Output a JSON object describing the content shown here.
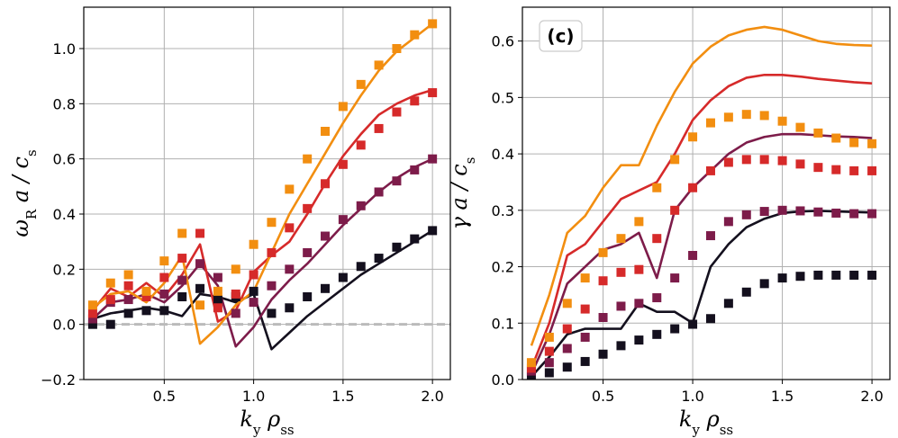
{
  "chart_data": [
    {
      "type": "line",
      "title": "",
      "xlabel": "k_y ρ_ss",
      "ylabel": "ω_R a / c_s",
      "xticks": [
        0.5,
        1.0,
        1.5,
        2.0
      ],
      "yticks": [
        -0.2,
        0.0,
        0.2,
        0.4,
        0.6,
        0.8,
        1.0
      ],
      "xlim": [
        0.05,
        2.1
      ],
      "ylim": [
        -0.2,
        1.15
      ],
      "grid": true,
      "reference_line": {
        "y": 0.0,
        "style": "dashed",
        "color": "#bbbbbb"
      },
      "x": [
        0.1,
        0.2,
        0.3,
        0.4,
        0.5,
        0.6,
        0.7,
        0.8,
        0.9,
        1.0,
        1.1,
        1.2,
        1.3,
        1.4,
        1.5,
        1.6,
        1.7,
        1.8,
        1.9,
        2.0
      ],
      "series": [
        {
          "color": "#f28e10",
          "line": [
            0.06,
            0.11,
            0.12,
            0.08,
            0.15,
            0.25,
            -0.07,
            -0.01,
            0.07,
            0.12,
            0.26,
            0.4,
            0.51,
            0.62,
            0.73,
            0.83,
            0.92,
            0.99,
            1.04,
            1.09
          ],
          "markers": [
            0.07,
            0.15,
            0.18,
            0.12,
            0.23,
            0.33,
            0.07,
            0.12,
            0.2,
            0.29,
            0.37,
            0.49,
            0.6,
            0.7,
            0.79,
            0.87,
            0.94,
            1.0,
            1.05,
            1.09
          ]
        },
        {
          "color": "#d62a2a",
          "line": [
            0.05,
            0.13,
            0.1,
            0.15,
            0.1,
            0.18,
            0.29,
            0.01,
            0.05,
            0.19,
            0.25,
            0.3,
            0.4,
            0.51,
            0.61,
            0.69,
            0.76,
            0.8,
            0.83,
            0.85
          ],
          "markers": [
            0.04,
            0.09,
            0.14,
            0.1,
            0.17,
            0.24,
            0.33,
            0.06,
            0.11,
            0.18,
            0.26,
            0.35,
            0.42,
            0.51,
            0.58,
            0.65,
            0.71,
            0.77,
            0.81,
            0.84
          ]
        },
        {
          "color": "#7d1c4a",
          "line": [
            0.02,
            0.08,
            0.09,
            0.11,
            0.08,
            0.14,
            0.22,
            0.14,
            -0.08,
            -0.01,
            0.09,
            0.16,
            0.22,
            0.29,
            0.36,
            0.42,
            0.48,
            0.53,
            0.57,
            0.6
          ],
          "markers": [
            0.02,
            0.08,
            0.09,
            0.11,
            0.11,
            0.16,
            0.22,
            0.17,
            0.04,
            0.08,
            0.14,
            0.2,
            0.26,
            0.32,
            0.38,
            0.43,
            0.48,
            0.52,
            0.56,
            0.6
          ]
        },
        {
          "color": "#14101e",
          "line": [
            0.02,
            0.04,
            0.05,
            0.06,
            0.05,
            0.03,
            0.11,
            0.1,
            0.08,
            0.11,
            -0.09,
            -0.03,
            0.03,
            0.08,
            0.13,
            0.18,
            0.22,
            0.26,
            0.3,
            0.34
          ],
          "markers": [
            0.0,
            0.0,
            0.04,
            0.05,
            0.05,
            0.1,
            0.13,
            0.09,
            0.1,
            0.12,
            0.04,
            0.06,
            0.1,
            0.13,
            0.17,
            0.21,
            0.24,
            0.28,
            0.31,
            0.34
          ]
        }
      ]
    },
    {
      "type": "line",
      "title": "",
      "panel_label": "(c)",
      "xlabel": "k_y ρ_ss",
      "ylabel": "γ a / c_s",
      "xticks": [
        0.5,
        1.0,
        1.5,
        2.0
      ],
      "yticks": [
        0.0,
        0.1,
        0.2,
        0.3,
        0.4,
        0.5,
        0.6
      ],
      "xlim": [
        0.05,
        2.1
      ],
      "ylim": [
        0.0,
        0.66
      ],
      "grid": true,
      "x": [
        0.1,
        0.2,
        0.3,
        0.4,
        0.5,
        0.6,
        0.7,
        0.8,
        0.9,
        1.0,
        1.1,
        1.2,
        1.3,
        1.4,
        1.5,
        1.6,
        1.7,
        1.8,
        1.9,
        2.0
      ],
      "series": [
        {
          "color": "#f28e10",
          "line": [
            0.06,
            0.15,
            0.26,
            0.29,
            0.34,
            0.38,
            0.38,
            0.45,
            0.51,
            0.56,
            0.59,
            0.61,
            0.62,
            0.625,
            0.62,
            0.61,
            0.6,
            0.595,
            0.593,
            0.592
          ],
          "markers": [
            0.03,
            0.075,
            0.135,
            0.18,
            0.225,
            0.25,
            0.28,
            0.34,
            0.39,
            0.43,
            0.455,
            0.465,
            0.47,
            0.468,
            0.458,
            0.447,
            0.437,
            0.428,
            0.42,
            0.418
          ]
        },
        {
          "color": "#d62a2a",
          "line": [
            0.02,
            0.1,
            0.22,
            0.24,
            0.28,
            0.32,
            0.335,
            0.35,
            0.4,
            0.46,
            0.495,
            0.52,
            0.535,
            0.54,
            0.54,
            0.537,
            0.533,
            0.53,
            0.527,
            0.525
          ],
          "markers": [
            0.02,
            0.05,
            0.09,
            0.125,
            0.175,
            0.19,
            0.195,
            0.25,
            0.3,
            0.34,
            0.37,
            0.385,
            0.39,
            0.39,
            0.388,
            0.382,
            0.376,
            0.372,
            0.37,
            0.37
          ]
        },
        {
          "color": "#7d1c4a",
          "line": [
            0.01,
            0.08,
            0.17,
            0.2,
            0.23,
            0.24,
            0.26,
            0.18,
            0.3,
            0.34,
            0.37,
            0.4,
            0.42,
            0.43,
            0.435,
            0.435,
            0.433,
            0.431,
            0.43,
            0.428
          ],
          "markers": [
            0.015,
            0.03,
            0.055,
            0.075,
            0.11,
            0.13,
            0.135,
            0.145,
            0.18,
            0.22,
            0.255,
            0.28,
            0.292,
            0.298,
            0.3,
            0.299,
            0.297,
            0.295,
            0.294,
            0.294
          ]
        },
        {
          "color": "#14101e",
          "line": [
            0.005,
            0.04,
            0.08,
            0.09,
            0.09,
            0.09,
            0.135,
            0.12,
            0.12,
            0.1,
            0.2,
            0.24,
            0.27,
            0.285,
            0.295,
            0.298,
            0.299,
            0.298,
            0.297,
            0.296
          ],
          "markers": [
            0.005,
            0.012,
            0.022,
            0.032,
            0.045,
            0.06,
            0.07,
            0.08,
            0.09,
            0.098,
            0.108,
            0.135,
            0.155,
            0.17,
            0.18,
            0.183,
            0.185,
            0.185,
            0.185,
            0.185
          ]
        }
      ]
    }
  ]
}
